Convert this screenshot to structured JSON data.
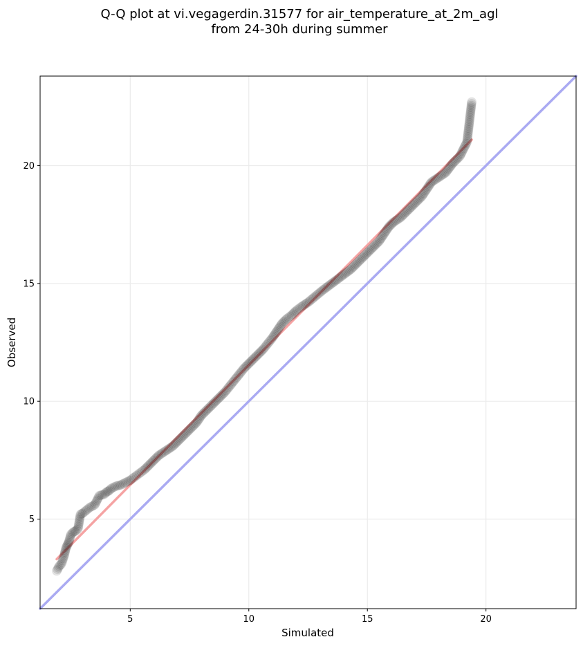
{
  "chart_data": {
    "type": "scatter",
    "title_line1": "Q-Q plot at vi.vegagerdin.31577 for air_temperature_at_2m_agl",
    "title_line2": "from 24-30h during summer",
    "xlabel": "Simulated",
    "ylabel": "Observed",
    "xlim": [
      1.2,
      23.8
    ],
    "ylim": [
      1.2,
      23.8
    ],
    "xticks": [
      5,
      10,
      15,
      20
    ],
    "yticks": [
      5,
      10,
      15,
      20
    ],
    "grid": true,
    "reference_line": {
      "color": "#aaaaf2",
      "from": [
        1.2,
        1.2
      ],
      "to": [
        23.8,
        23.8
      ]
    },
    "fit_line": {
      "color": "#f5a3a3",
      "from": [
        1.9,
        3.3
      ],
      "to": [
        19.4,
        21.1
      ]
    },
    "point_color": "#000000",
    "quantiles": [
      [
        1.9,
        2.8
      ],
      [
        2.0,
        3.0
      ],
      [
        2.1,
        3.1
      ],
      [
        2.2,
        3.4
      ],
      [
        2.3,
        3.8
      ],
      [
        2.35,
        3.9
      ],
      [
        2.4,
        4.0
      ],
      [
        2.5,
        4.35
      ],
      [
        2.6,
        4.45
      ],
      [
        2.7,
        4.5
      ],
      [
        2.8,
        4.6
      ],
      [
        2.9,
        5.2
      ],
      [
        3.0,
        5.25
      ],
      [
        3.3,
        5.5
      ],
      [
        3.5,
        5.6
      ],
      [
        3.7,
        6.0
      ],
      [
        3.9,
        6.05
      ],
      [
        4.0,
        6.15
      ],
      [
        4.1,
        6.2
      ],
      [
        4.2,
        6.3
      ],
      [
        4.4,
        6.4
      ],
      [
        4.6,
        6.45
      ],
      [
        4.8,
        6.55
      ],
      [
        5.0,
        6.65
      ],
      [
        5.2,
        6.8
      ],
      [
        5.4,
        6.95
      ],
      [
        5.6,
        7.1
      ],
      [
        5.8,
        7.3
      ],
      [
        6.0,
        7.5
      ],
      [
        6.2,
        7.7
      ],
      [
        6.5,
        7.9
      ],
      [
        6.8,
        8.1
      ],
      [
        7.0,
        8.3
      ],
      [
        7.2,
        8.5
      ],
      [
        7.4,
        8.7
      ],
      [
        7.6,
        8.9
      ],
      [
        7.8,
        9.1
      ],
      [
        8.0,
        9.4
      ],
      [
        8.2,
        9.6
      ],
      [
        8.4,
        9.8
      ],
      [
        8.6,
        10.0
      ],
      [
        8.8,
        10.2
      ],
      [
        9.0,
        10.4
      ],
      [
        9.2,
        10.65
      ],
      [
        9.4,
        10.9
      ],
      [
        9.6,
        11.15
      ],
      [
        9.8,
        11.4
      ],
      [
        10.0,
        11.6
      ],
      [
        10.2,
        11.8
      ],
      [
        10.4,
        12.0
      ],
      [
        10.6,
        12.2
      ],
      [
        10.8,
        12.45
      ],
      [
        11.0,
        12.7
      ],
      [
        11.2,
        13.0
      ],
      [
        11.4,
        13.3
      ],
      [
        11.6,
        13.5
      ],
      [
        11.8,
        13.65
      ],
      [
        12.0,
        13.85
      ],
      [
        12.2,
        14.0
      ],
      [
        12.5,
        14.2
      ],
      [
        12.8,
        14.45
      ],
      [
        13.1,
        14.7
      ],
      [
        13.5,
        15.0
      ],
      [
        13.9,
        15.3
      ],
      [
        14.3,
        15.6
      ],
      [
        14.6,
        15.9
      ],
      [
        14.9,
        16.2
      ],
      [
        15.2,
        16.5
      ],
      [
        15.5,
        16.8
      ],
      [
        15.7,
        17.1
      ],
      [
        15.9,
        17.4
      ],
      [
        16.1,
        17.6
      ],
      [
        16.4,
        17.8
      ],
      [
        16.7,
        18.1
      ],
      [
        17.0,
        18.4
      ],
      [
        17.3,
        18.7
      ],
      [
        17.5,
        19.0
      ],
      [
        17.7,
        19.3
      ],
      [
        18.0,
        19.5
      ],
      [
        18.3,
        19.7
      ],
      [
        18.6,
        20.1
      ],
      [
        18.9,
        20.4
      ],
      [
        19.1,
        20.8
      ],
      [
        19.2,
        21.0
      ],
      [
        19.4,
        22.7
      ]
    ]
  }
}
